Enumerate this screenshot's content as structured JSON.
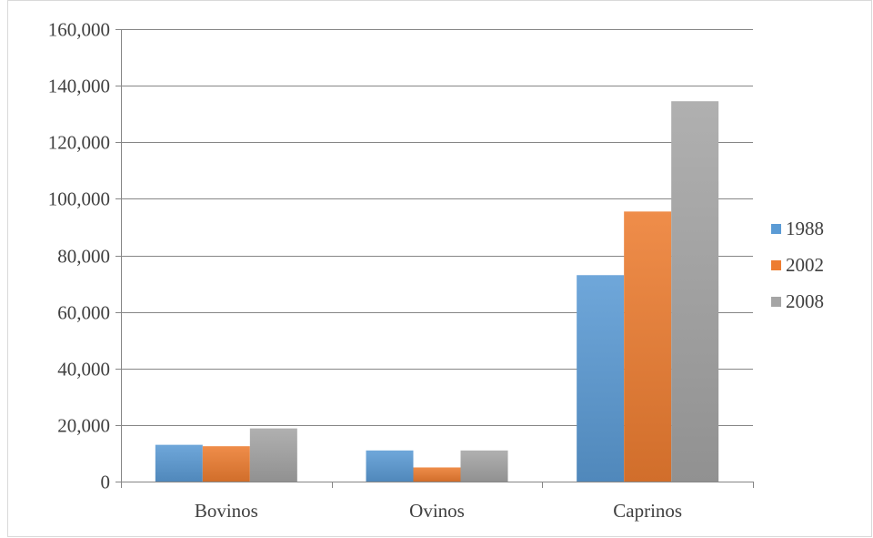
{
  "chart_data": {
    "type": "bar",
    "title": "",
    "xlabel": "",
    "ylabel": "",
    "categories": [
      "Bovinos",
      "Ovinos",
      "Caprinos"
    ],
    "series": [
      {
        "name": "1988",
        "values": [
          13000,
          11000,
          73000
        ],
        "color": "#5B9BD5"
      },
      {
        "name": "2002",
        "values": [
          12500,
          5000,
          95500
        ],
        "color": "#ED7D31"
      },
      {
        "name": "2008",
        "values": [
          18800,
          11000,
          134500
        ],
        "color": "#A5A5A5"
      }
    ],
    "ylim": [
      0,
      160000
    ],
    "ytick_labels": [
      "0",
      "20,000",
      "40,000",
      "60,000",
      "80,000",
      "100,000",
      "120,000",
      "140,000",
      "160,000"
    ],
    "grid": true,
    "legend_position": "right"
  }
}
